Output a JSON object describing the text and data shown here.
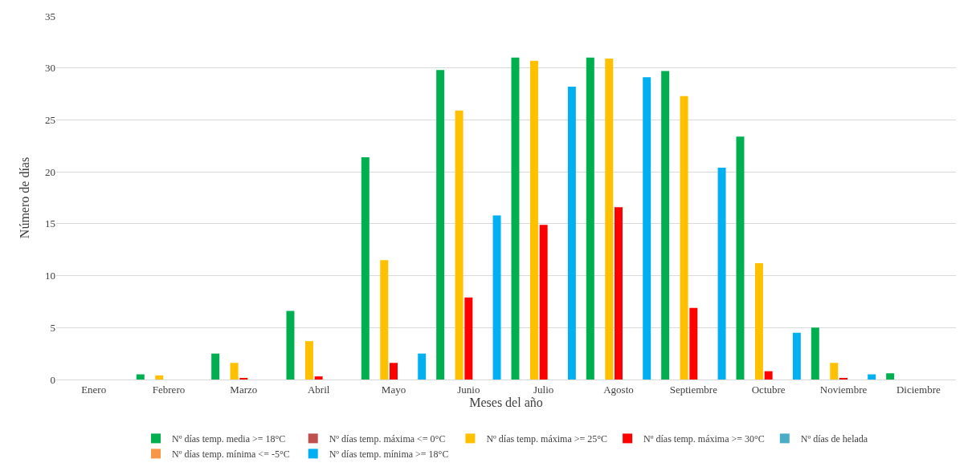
{
  "chart_data": {
    "type": "bar",
    "xlabel": "Meses del año",
    "ylabel": "Número de días",
    "categories": [
      "Enero",
      "Febrero",
      "Marzo",
      "Abril",
      "Mayo",
      "Junio",
      "Julio",
      "Agosto",
      "Septiembre",
      "Octubre",
      "Noviembre",
      "Diciembre"
    ],
    "series": [
      {
        "name": "Nº días temp. media >= 18°C",
        "color": "#00b050",
        "values": [
          0,
          0.5,
          2.5,
          6.6,
          21.4,
          29.8,
          31,
          31,
          29.7,
          23.4,
          5.0,
          0.6
        ]
      },
      {
        "name": "Nº días temp. máxima <= 0°C",
        "color": "#c0504d",
        "values": [
          0,
          0,
          0,
          0,
          0,
          0,
          0,
          0,
          0,
          0,
          0,
          0
        ]
      },
      {
        "name": "Nº días temp. máxima >= 25°C",
        "color": "#ffc000",
        "values": [
          0,
          0.4,
          1.6,
          3.7,
          11.5,
          25.9,
          30.7,
          30.9,
          27.3,
          11.2,
          1.6,
          0
        ]
      },
      {
        "name": "Nº días temp. máxima >= 30°C",
        "color": "#ff0000",
        "values": [
          0,
          0,
          0.1,
          0.3,
          1.6,
          7.9,
          14.9,
          16.6,
          6.9,
          0.8,
          0.1,
          0
        ]
      },
      {
        "name": "Nº días de helada",
        "color": "#4bacc6",
        "values": [
          0,
          0,
          0,
          0,
          0,
          0,
          0,
          0,
          0,
          0,
          0,
          0
        ]
      },
      {
        "name": "Nº días temp. mínima <= -5°C",
        "color": "#f79646",
        "values": [
          0,
          0,
          0,
          0,
          0,
          0,
          0,
          0,
          0,
          0,
          0,
          0
        ]
      },
      {
        "name": "Nº días temp. mínima >= 18°C",
        "color": "#00b0f0",
        "values": [
          0,
          0,
          0,
          0,
          2.5,
          15.8,
          28.2,
          29.1,
          20.4,
          4.5,
          0.5,
          0
        ]
      }
    ],
    "ylim": [
      0,
      35
    ],
    "yticks": [
      0,
      5,
      10,
      15,
      20,
      25,
      30,
      35
    ],
    "grid": "y",
    "legend": "bottom"
  }
}
